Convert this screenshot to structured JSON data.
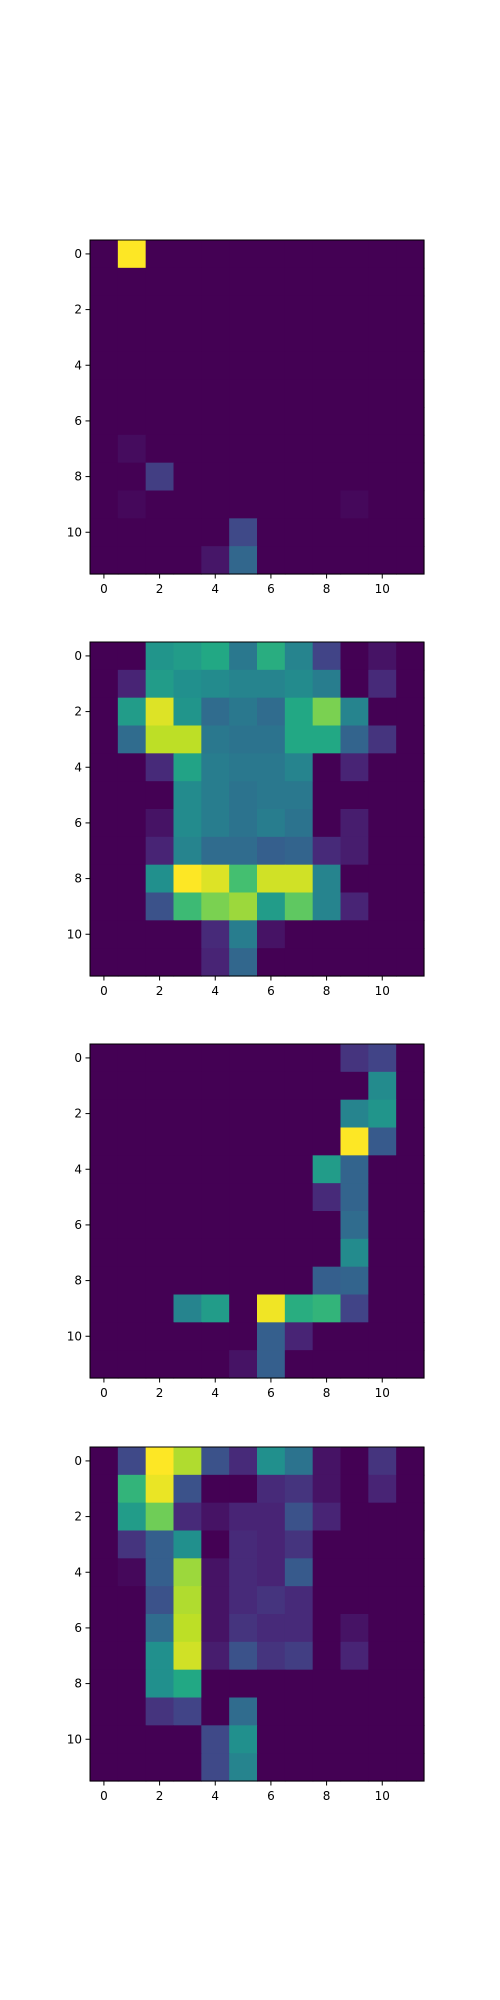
{
  "chart_data": [
    {
      "type": "heatmap",
      "colormap": "viridis",
      "vmin": 0,
      "vmax": 1,
      "xticks": [
        "0",
        "2",
        "4",
        "6",
        "8",
        "10"
      ],
      "yticks": [
        "0",
        "2",
        "4",
        "6",
        "8",
        "10"
      ],
      "values": [
        [
          0,
          1,
          0,
          0,
          0,
          0,
          0,
          0,
          0,
          0,
          0,
          0
        ],
        [
          0,
          0,
          0,
          0,
          0,
          0,
          0,
          0,
          0,
          0,
          0,
          0
        ],
        [
          0,
          0,
          0,
          0,
          0,
          0,
          0,
          0,
          0,
          0,
          0,
          0
        ],
        [
          0,
          0,
          0,
          0,
          0,
          0,
          0,
          0,
          0,
          0,
          0,
          0
        ],
        [
          0,
          0,
          0,
          0,
          0,
          0,
          0,
          0,
          0,
          0,
          0,
          0
        ],
        [
          0,
          0,
          0,
          0,
          0,
          0,
          0,
          0,
          0,
          0,
          0,
          0
        ],
        [
          0,
          0,
          0,
          0,
          0,
          0,
          0,
          0,
          0,
          0,
          0,
          0
        ],
        [
          0,
          0.03,
          0,
          0,
          0,
          0,
          0,
          0,
          0,
          0,
          0,
          0
        ],
        [
          0,
          0,
          0.18,
          0,
          0,
          0,
          0,
          0,
          0,
          0,
          0,
          0
        ],
        [
          0,
          0.02,
          0,
          0,
          0,
          0,
          0,
          0,
          0,
          0.02,
          0,
          0
        ],
        [
          0,
          0,
          0,
          0,
          0,
          0.22,
          0,
          0,
          0,
          0,
          0,
          0
        ],
        [
          0,
          0,
          0,
          0,
          0.06,
          0.33,
          0,
          0,
          0,
          0,
          0,
          0
        ]
      ]
    },
    {
      "type": "heatmap",
      "colormap": "viridis",
      "vmin": 0,
      "vmax": 1,
      "xticks": [
        "0",
        "2",
        "4",
        "6",
        "8",
        "10"
      ],
      "yticks": [
        "0",
        "2",
        "4",
        "6",
        "8",
        "10"
      ],
      "values": [
        [
          0,
          0,
          0.52,
          0.55,
          0.6,
          0.4,
          0.62,
          0.45,
          0.2,
          0,
          0.05,
          0
        ],
        [
          0,
          0.1,
          0.55,
          0.5,
          0.48,
          0.45,
          0.45,
          0.48,
          0.42,
          0,
          0.12,
          0
        ],
        [
          0,
          0.55,
          0.95,
          0.52,
          0.35,
          0.4,
          0.35,
          0.6,
          0.8,
          0.45,
          0,
          0
        ],
        [
          0,
          0.35,
          0.9,
          0.9,
          0.4,
          0.38,
          0.38,
          0.6,
          0.6,
          0.32,
          0.15,
          0
        ],
        [
          0,
          0,
          0.12,
          0.58,
          0.42,
          0.4,
          0.4,
          0.45,
          0,
          0.1,
          0,
          0
        ],
        [
          0,
          0,
          0,
          0.48,
          0.42,
          0.38,
          0.4,
          0.4,
          0,
          0,
          0,
          0
        ],
        [
          0,
          0,
          0.05,
          0.48,
          0.42,
          0.38,
          0.42,
          0.38,
          0,
          0.08,
          0,
          0
        ],
        [
          0,
          0,
          0.1,
          0.45,
          0.35,
          0.35,
          0.3,
          0.32,
          0.12,
          0.08,
          0,
          0
        ],
        [
          0,
          0,
          0.5,
          1,
          0.95,
          0.7,
          0.93,
          0.93,
          0.45,
          0,
          0,
          0
        ],
        [
          0,
          0,
          0.25,
          0.68,
          0.8,
          0.85,
          0.55,
          0.75,
          0.45,
          0.1,
          0,
          0
        ],
        [
          0,
          0,
          0,
          0,
          0.12,
          0.42,
          0.05,
          0,
          0,
          0,
          0,
          0
        ],
        [
          0,
          0,
          0,
          0,
          0.1,
          0.33,
          0,
          0,
          0,
          0,
          0,
          0
        ]
      ]
    },
    {
      "type": "heatmap",
      "colormap": "viridis",
      "vmin": 0,
      "vmax": 1,
      "xticks": [
        "0",
        "2",
        "4",
        "6",
        "8",
        "10"
      ],
      "yticks": [
        "0",
        "2",
        "4",
        "6",
        "8",
        "10"
      ],
      "values": [
        [
          0,
          0,
          0,
          0,
          0,
          0,
          0,
          0,
          0,
          0.15,
          0.2,
          0
        ],
        [
          0,
          0,
          0,
          0,
          0,
          0,
          0,
          0,
          0,
          0,
          0.48,
          0
        ],
        [
          0,
          0,
          0,
          0,
          0,
          0,
          0,
          0,
          0,
          0.45,
          0.52,
          0
        ],
        [
          0,
          0,
          0,
          0,
          0,
          0,
          0,
          0,
          0,
          1,
          0.28,
          0
        ],
        [
          0,
          0,
          0,
          0,
          0,
          0,
          0,
          0,
          0.55,
          0.32,
          0,
          0
        ],
        [
          0,
          0,
          0,
          0,
          0,
          0,
          0,
          0,
          0.12,
          0.32,
          0,
          0
        ],
        [
          0,
          0,
          0,
          0,
          0,
          0,
          0,
          0,
          0,
          0.35,
          0,
          0
        ],
        [
          0,
          0,
          0,
          0,
          0,
          0,
          0,
          0,
          0,
          0.48,
          0,
          0
        ],
        [
          0,
          0,
          0,
          0,
          0,
          0,
          0,
          0,
          0.3,
          0.32,
          0,
          0
        ],
        [
          0,
          0,
          0,
          0.45,
          0.55,
          0,
          0.98,
          0.62,
          0.65,
          0.2,
          0,
          0
        ],
        [
          0,
          0,
          0,
          0,
          0,
          0,
          0.3,
          0.1,
          0,
          0,
          0,
          0
        ],
        [
          0,
          0,
          0,
          0,
          0,
          0.05,
          0.3,
          0,
          0,
          0,
          0,
          0
        ]
      ]
    },
    {
      "type": "heatmap",
      "colormap": "viridis",
      "vmin": 0,
      "vmax": 1,
      "xticks": [
        "0",
        "2",
        "4",
        "6",
        "8",
        "10"
      ],
      "yticks": [
        "0",
        "2",
        "4",
        "6",
        "8",
        "10"
      ],
      "values": [
        [
          0,
          0.22,
          1,
          0.88,
          0.25,
          0.12,
          0.5,
          0.38,
          0.05,
          0,
          0.15,
          0
        ],
        [
          0,
          0.65,
          0.97,
          0.25,
          0,
          0,
          0.12,
          0.15,
          0.05,
          0,
          0.1,
          0
        ],
        [
          0,
          0.55,
          0.78,
          0.12,
          0.05,
          0.1,
          0.1,
          0.25,
          0.1,
          0,
          0,
          0
        ],
        [
          0,
          0.15,
          0.3,
          0.5,
          0,
          0.12,
          0.1,
          0.15,
          0,
          0,
          0,
          0
        ],
        [
          0,
          0.02,
          0.3,
          0.85,
          0.05,
          0.12,
          0.1,
          0.28,
          0,
          0,
          0,
          0
        ],
        [
          0,
          0,
          0.25,
          0.88,
          0.05,
          0.12,
          0.15,
          0.12,
          0,
          0,
          0,
          0
        ],
        [
          0,
          0,
          0.35,
          0.9,
          0.05,
          0.15,
          0.12,
          0.12,
          0,
          0.05,
          0,
          0
        ],
        [
          0,
          0,
          0.5,
          0.93,
          0.08,
          0.25,
          0.15,
          0.18,
          0,
          0.1,
          0,
          0
        ],
        [
          0,
          0,
          0.5,
          0.6,
          0,
          0,
          0,
          0,
          0,
          0,
          0,
          0
        ],
        [
          0,
          0,
          0.15,
          0.2,
          0,
          0.35,
          0,
          0,
          0,
          0,
          0,
          0
        ],
        [
          0,
          0,
          0,
          0,
          0.22,
          0.5,
          0,
          0,
          0,
          0,
          0,
          0
        ],
        [
          0,
          0,
          0,
          0,
          0.22,
          0.45,
          0,
          0,
          0,
          0,
          0,
          0
        ]
      ]
    }
  ]
}
